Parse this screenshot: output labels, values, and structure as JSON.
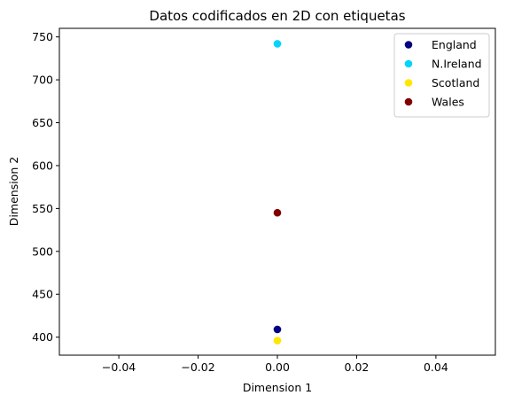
{
  "chart_data": {
    "type": "scatter",
    "title": "Datos codificados en 2D con etiquetas",
    "xlabel": "Dimension 1",
    "ylabel": "Dimension 2",
    "xlim": [
      -0.055,
      0.055
    ],
    "ylim": [
      379,
      760
    ],
    "xticks": [
      -0.04,
      -0.02,
      0.0,
      0.02,
      0.04
    ],
    "xtick_labels": [
      "−0.04",
      "−0.02",
      "0.00",
      "0.02",
      "0.04"
    ],
    "yticks": [
      400,
      450,
      500,
      550,
      600,
      650,
      700,
      750
    ],
    "ytick_labels": [
      "400",
      "450",
      "500",
      "550",
      "600",
      "650",
      "700",
      "750"
    ],
    "grid": false,
    "legend_position": "upper-right",
    "series": [
      {
        "name": "England",
        "color": "#000080",
        "points": [
          {
            "x": 0.0,
            "y": 409
          }
        ]
      },
      {
        "name": "N.Ireland",
        "color": "#00d4ff",
        "points": [
          {
            "x": 0.0,
            "y": 742
          }
        ]
      },
      {
        "name": "Scotland",
        "color": "#ffe600",
        "points": [
          {
            "x": 0.0,
            "y": 396
          }
        ]
      },
      {
        "name": "Wales",
        "color": "#800000",
        "points": [
          {
            "x": 0.0,
            "y": 545
          }
        ]
      }
    ]
  }
}
